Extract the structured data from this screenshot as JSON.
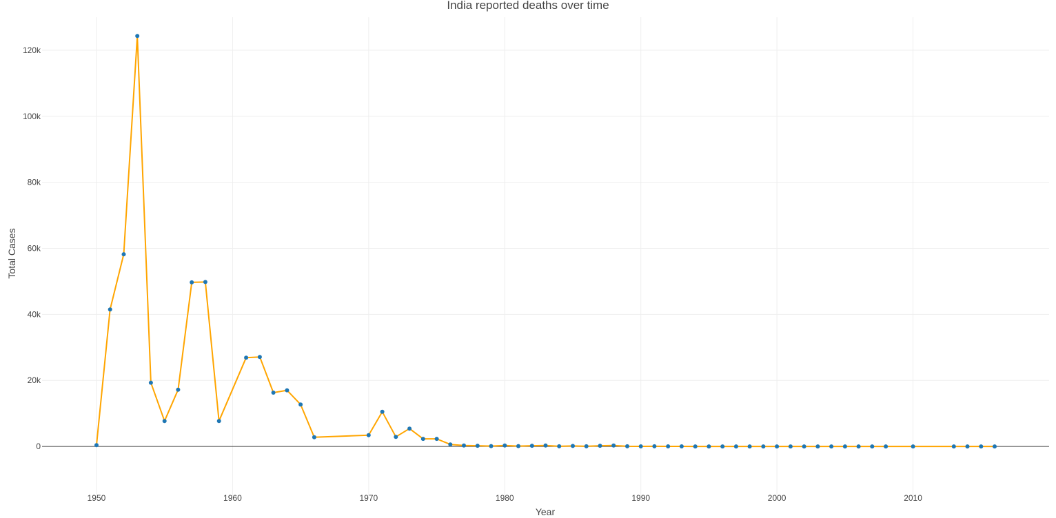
{
  "chart_data": {
    "type": "line",
    "title": "India reported deaths over time",
    "xlabel": "Year",
    "ylabel": "Total Cases",
    "xlim": [
      1946,
      2020
    ],
    "ylim": [
      -15000,
      130000
    ],
    "x_ticks": [
      1950,
      1960,
      1970,
      1980,
      1990,
      2000,
      2010
    ],
    "y_ticks": [
      0,
      20000,
      40000,
      60000,
      80000,
      100000,
      120000
    ],
    "y_tick_labels": [
      "0",
      "20k",
      "40k",
      "60k",
      "80k",
      "100k",
      "120k"
    ],
    "grid": true,
    "line_color": "#FFA500",
    "marker_color": "#1F77B4",
    "series": [
      {
        "x": [
          1950,
          1951,
          1952,
          1953,
          1954,
          1955,
          1956,
          1957,
          1958,
          1959,
          1961,
          1962,
          1963,
          1964,
          1965,
          1966,
          1970,
          1971,
          1972,
          1973,
          1974,
          1975,
          1976,
          1977,
          1978,
          1979,
          1980,
          1981,
          1982,
          1983,
          1984,
          1985,
          1986,
          1987,
          1988,
          1989,
          1990,
          1991,
          1992,
          1993,
          1994,
          1995,
          1996,
          1997,
          1998,
          1999,
          2000,
          2001,
          2002,
          2003,
          2004,
          2005,
          2006,
          2007,
          2008,
          2010,
          2013,
          2014,
          2015,
          2016
        ],
        "values": [
          400,
          41500,
          58200,
          124300,
          19300,
          7700,
          17200,
          49700,
          49800,
          7700,
          26900,
          27100,
          16300,
          17000,
          12700,
          2800,
          3400,
          10500,
          2900,
          5400,
          2300,
          2300,
          600,
          300,
          200,
          100,
          300,
          100,
          200,
          300,
          50,
          150,
          50,
          200,
          300,
          50,
          30,
          50,
          20,
          20,
          10,
          10,
          10,
          10,
          10,
          10,
          10,
          10,
          10,
          10,
          10,
          10,
          10,
          10,
          10,
          10,
          10,
          10,
          10,
          10
        ]
      }
    ]
  }
}
